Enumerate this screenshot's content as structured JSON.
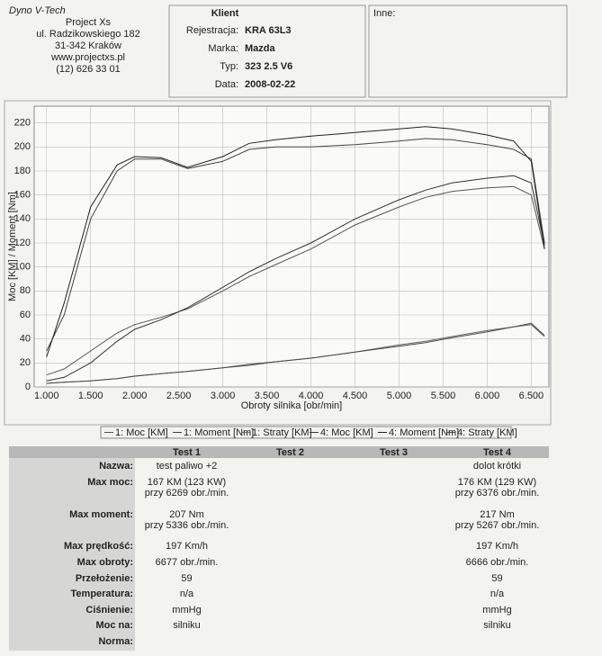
{
  "header": {
    "company": [
      "Dyno V-Tech",
      "Project Xs",
      "ul. Radzikowskiego 182",
      "31-342 Kraków",
      "www.projectxs.pl",
      "(12) 626 33 01"
    ],
    "client_title": "Klient",
    "client": [
      {
        "label": "Rejestracja:",
        "value": "KRA 63L3"
      },
      {
        "label": "Marka:",
        "value": "Mazda"
      },
      {
        "label": "Typ:",
        "value": "323 2.5 V6"
      },
      {
        "label": "Data:",
        "value": "2008-02-22"
      }
    ],
    "other": "Inne:"
  },
  "chart_data": {
    "type": "line",
    "x_label": "Obroty silnika [obr/min]",
    "y_label": "Moc [KM] / Moment [Nm]",
    "x": [
      1000,
      1200,
      1500,
      1800,
      2000,
      2300,
      2600,
      3000,
      3300,
      3600,
      4000,
      4500,
      5000,
      5300,
      5600,
      6000,
      6300,
      6500,
      6650
    ],
    "series": [
      {
        "name": "1: Moc [KM]",
        "color": "#555555",
        "values": [
          10,
          15,
          30,
          45,
          52,
          58,
          65,
          80,
          92,
          102,
          115,
          135,
          150,
          158,
          163,
          166,
          167,
          160,
          115
        ]
      },
      {
        "name": "1: Moment [Nm]",
        "color": "#444444",
        "values": [
          30,
          60,
          140,
          180,
          190,
          190,
          182,
          188,
          198,
          200,
          200,
          202,
          205,
          207,
          206,
          202,
          198,
          190,
          120
        ]
      },
      {
        "name": "1: Straty [KM]",
        "color": "#666666",
        "values": [
          3,
          4,
          5,
          7,
          9,
          11,
          13,
          16,
          19,
          21,
          24,
          29,
          35,
          38,
          42,
          47,
          50,
          52,
          42
        ]
      },
      {
        "name": "4: Moc [KM]",
        "color": "#333333",
        "values": [
          5,
          8,
          20,
          38,
          48,
          56,
          66,
          83,
          96,
          107,
          120,
          140,
          156,
          164,
          170,
          174,
          176,
          170,
          118
        ]
      },
      {
        "name": "4: Moment [Nm]",
        "color": "#222222",
        "values": [
          25,
          70,
          150,
          185,
          192,
          191,
          183,
          192,
          203,
          206,
          209,
          212,
          215,
          217,
          215,
          210,
          205,
          188,
          115
        ]
      },
      {
        "name": "4: Straty [KM]",
        "color": "#4a4a4a",
        "values": [
          3,
          4,
          5,
          7,
          9,
          11,
          13,
          16,
          18,
          21,
          24,
          29,
          34,
          37,
          41,
          46,
          50,
          53,
          43
        ]
      }
    ],
    "xlim": [
      860,
      6700
    ],
    "ylim": [
      0,
      234
    ],
    "xticks": [
      {
        "value": 1000,
        "label": "1.000"
      },
      {
        "value": 1500,
        "label": "1.500"
      },
      {
        "value": 2000,
        "label": "2.000"
      },
      {
        "value": 2500,
        "label": "2.500"
      },
      {
        "value": 3000,
        "label": "3.000"
      },
      {
        "value": 3500,
        "label": "3.500"
      },
      {
        "value": 4000,
        "label": "4.000"
      },
      {
        "value": 4500,
        "label": "4.500"
      },
      {
        "value": 5000,
        "label": "5.000"
      },
      {
        "value": 5500,
        "label": "5.500"
      },
      {
        "value": 6000,
        "label": "6.000"
      },
      {
        "value": 6500,
        "label": "6.500"
      }
    ],
    "yticks": [
      0,
      20,
      40,
      60,
      80,
      100,
      120,
      140,
      160,
      180,
      200,
      220
    ],
    "grid": true,
    "legend": "bottom"
  },
  "table": {
    "columns": [
      "Test 1",
      "Test 2",
      "Test 3",
      "Test 4"
    ],
    "rows": [
      {
        "label": "Nazwa:",
        "test1": [
          "test paliwo +2"
        ],
        "test4": [
          "dolot krótki"
        ]
      },
      {
        "label": "Max moc:",
        "test1": [
          "167 KM (123 KW)",
          "przy 6269 obr./min."
        ],
        "test4": [
          "176 KM (129 KW)",
          "przy 6376 obr./min."
        ]
      },
      {
        "label": "Max moment:",
        "test1": [
          "207 Nm",
          "przy 5336 obr./min."
        ],
        "test4": [
          "217 Nm",
          "przy 5267 obr./min."
        ]
      },
      {
        "label": "Max prędkość:",
        "test1": [
          "197 Km/h"
        ],
        "test4": [
          "197 Km/h"
        ]
      },
      {
        "label": "Max obroty:",
        "test1": [
          "6677 obr./min."
        ],
        "test4": [
          "6666 obr./min."
        ]
      },
      {
        "label": "Przełożenie:",
        "test1": [
          "59"
        ],
        "test4": [
          "59"
        ]
      },
      {
        "label": "Temperatura:",
        "test1": [
          "n/a"
        ],
        "test4": [
          "n/a"
        ]
      },
      {
        "label": "Ciśnienie:",
        "test1": [
          "mmHg"
        ],
        "test4": [
          "mmHg"
        ]
      },
      {
        "label": "Moc na:",
        "test1": [
          "silniku"
        ],
        "test4": [
          "silniku"
        ]
      },
      {
        "label": "Norma:"
      }
    ]
  }
}
